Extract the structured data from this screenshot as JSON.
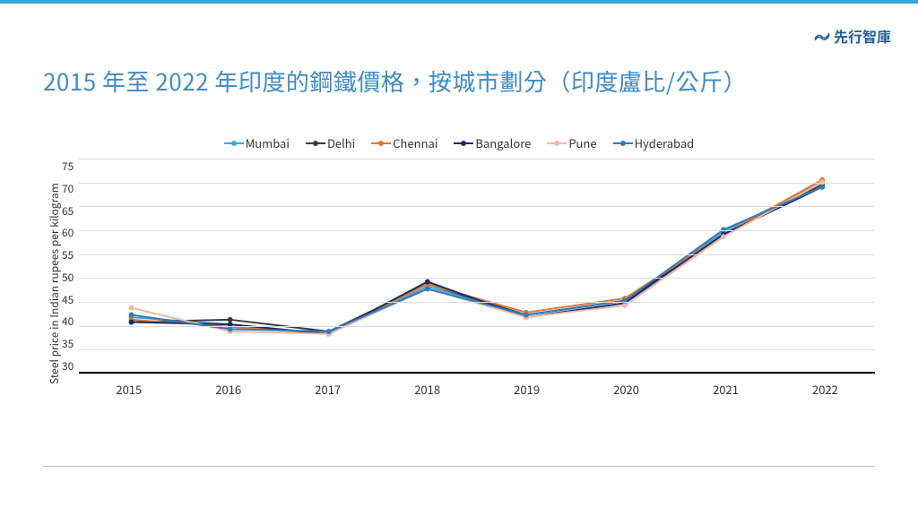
{
  "topbar_color": "#2fa8e0",
  "brand": {
    "text": "先行智庫",
    "color": "#1a5fa0"
  },
  "title": {
    "text": "2015 年至 2022 年印度的鋼鐵價格，按城市劃分（印度盧比/公斤）",
    "color": "#3d8cc9",
    "fontsize": 26
  },
  "chart": {
    "type": "line",
    "ylabel": "Steel price in Indian rupees per kilogram",
    "label_fontsize": 12,
    "ylim": [
      30,
      75
    ],
    "ytick_step": 5,
    "grid_color": "#dcdcdc",
    "axis_color": "#000000",
    "background_color": "#ffffff",
    "line_width": 2,
    "marker_size": 4,
    "x_categories": [
      "2015",
      "2016",
      "2017",
      "2018",
      "2019",
      "2020",
      "2021",
      "2022"
    ],
    "series": [
      {
        "name": "Mumbai",
        "color": "#3fa7e0",
        "values": [
          41.5,
          40.0,
          38.0,
          48.0,
          42.0,
          45.0,
          59.5,
          70.0
        ]
      },
      {
        "name": "Delhi",
        "color": "#3a3a3a",
        "values": [
          40.5,
          41.0,
          38.5,
          48.5,
          42.0,
          45.0,
          59.0,
          69.5
        ]
      },
      {
        "name": "Chennai",
        "color": "#e07b2f",
        "values": [
          41.0,
          39.5,
          38.0,
          48.5,
          42.5,
          45.5,
          59.0,
          70.5
        ]
      },
      {
        "name": "Bangalore",
        "color": "#1c2c6b",
        "values": [
          40.5,
          40.0,
          38.0,
          49.0,
          41.5,
          44.5,
          59.0,
          69.0
        ]
      },
      {
        "name": "Pune",
        "color": "#f2b9a0",
        "values": [
          43.5,
          38.5,
          38.0,
          47.5,
          41.5,
          44.0,
          58.5,
          70.0
        ]
      },
      {
        "name": "Hyderabad",
        "color": "#2f7cbf",
        "values": [
          42.0,
          39.0,
          38.5,
          47.5,
          42.0,
          45.0,
          60.0,
          69.0
        ]
      }
    ]
  }
}
